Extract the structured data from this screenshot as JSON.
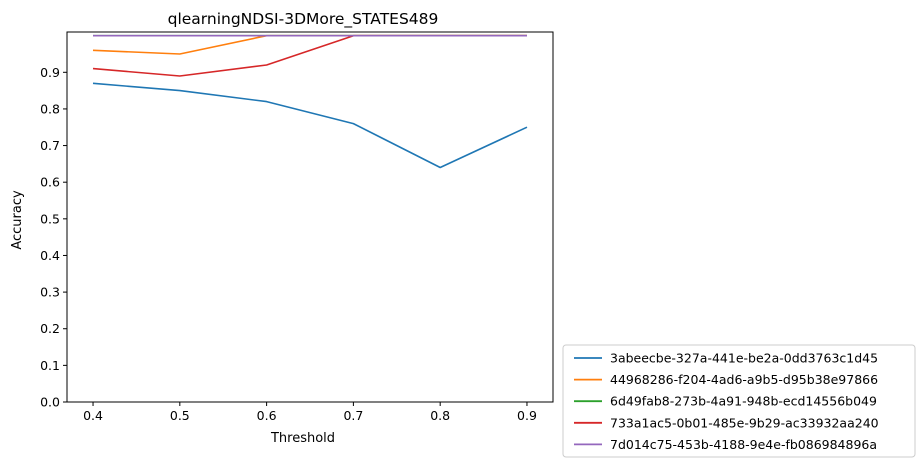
{
  "chart_data": {
    "type": "line",
    "title": "qlearningNDSI-3DMore_STATES489",
    "xlabel": "Threshold",
    "ylabel": "Accuracy",
    "x": [
      0.4,
      0.5,
      0.6,
      0.7,
      0.8,
      0.9
    ],
    "x_tick_labels": [
      "0.4",
      "0.5",
      "0.6",
      "0.7",
      "0.8",
      "0.9"
    ],
    "y_ticks": [
      0.0,
      0.1,
      0.2,
      0.3,
      0.4,
      0.5,
      0.6,
      0.7,
      0.8,
      0.9
    ],
    "y_tick_labels": [
      "0.0",
      "0.1",
      "0.2",
      "0.3",
      "0.4",
      "0.5",
      "0.6",
      "0.7",
      "0.8",
      "0.9"
    ],
    "xlim": [
      0.37,
      0.93
    ],
    "ylim": [
      0.0,
      1.01
    ],
    "grid": false,
    "legend_position": "outside-lower-right",
    "series": [
      {
        "name": "3abeecbe-327a-441e-be2a-0dd3763c1d45",
        "color": "#1f77b4",
        "values": [
          0.87,
          0.85,
          0.82,
          0.76,
          0.64,
          0.75
        ]
      },
      {
        "name": "44968286-f204-4ad6-a9b5-d95b38e97866",
        "color": "#ff7f0e",
        "values": [
          0.96,
          0.95,
          1.0,
          1.0,
          1.0,
          1.0
        ]
      },
      {
        "name": "6d49fab8-273b-4a91-948b-ecd14556b049",
        "color": "#2ca02c",
        "values": [
          1.0,
          1.0,
          1.0,
          1.0,
          1.0,
          1.0
        ]
      },
      {
        "name": "733a1ac5-0b01-485e-9b29-ac33932aa240",
        "color": "#d62728",
        "values": [
          0.91,
          0.89,
          0.92,
          1.0,
          1.0,
          1.0
        ]
      },
      {
        "name": "7d014c75-453b-4188-9e4e-fb086984896a",
        "color": "#9467bd",
        "values": [
          1.0,
          1.0,
          1.0,
          1.0,
          1.0,
          1.0
        ]
      }
    ]
  }
}
